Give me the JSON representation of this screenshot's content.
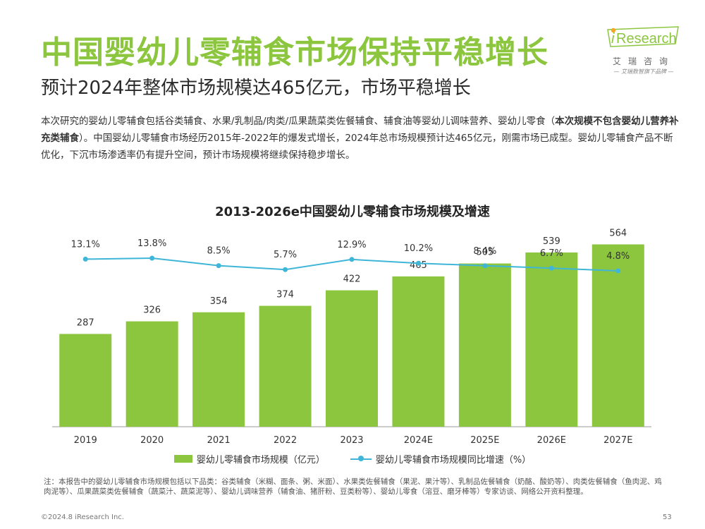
{
  "page": {
    "title": "中国婴幼儿零辅食市场保持平稳增长",
    "subtitle": "预计2024年整体市场规模达465亿元，市场平稳增长",
    "intro_part1": "本次研究的婴幼儿零辅食包括谷类辅食、水果/乳制品/肉类/瓜果蔬菜类佐餐辅食、辅食油等婴幼儿调味营养、婴幼儿零食（",
    "intro_bold": "本次规模不包含婴幼儿营养补充类辅食",
    "intro_part2": "）。中国婴幼儿零辅食市场经历2015年-2022年的爆发式增长，2024年总市场规模预计达465亿元，刚需市场已成型。婴幼儿零辅食产品不断优化，下沉市场渗透率仍有提升空间，预计市场规模将继续保持稳步增长。",
    "note": "注：本报告中的婴幼儿零辅食市场规模包括以下品类：谷类辅食（米糊、面条、粥、米面）、水果类佐餐辅食（果泥、果汁等）、乳制品佐餐辅食（奶酪、酸奶等）、肉类佐餐辅食（鱼肉泥、鸡肉泥等）、瓜果蔬菜类佐餐辅食（蔬菜汁、蔬菜泥等）、婴幼儿调味营养（辅食油、猪肝粉、豆类粉等）、婴幼儿零食（溶豆、磨牙棒等）专家访谈、网络公开资料整理。",
    "footer_copyright": "©2024.8 iResearch Inc.",
    "page_number": "53"
  },
  "logo": {
    "brand_i": "i",
    "brand_rest": "Research",
    "cn_name": "艾瑞咨询",
    "slogan": "— 艾瑞数智旗下品牌 —",
    "color_dot": "#f5a623",
    "color_brand": "#8cc63f"
  },
  "colors": {
    "bar": "#8cc63f",
    "line": "#3fb6d8",
    "axis": "#999999",
    "label": "#333333"
  },
  "chart_data": {
    "type": "bar",
    "title": "2013-2026e中国婴幼儿零辅食市场规模及增速",
    "categories": [
      "2019",
      "2020",
      "2021",
      "2022",
      "2023",
      "2024E",
      "2025E",
      "2026E",
      "2027E"
    ],
    "series": [
      {
        "name": "婴幼儿零辅食市场规模（亿元）",
        "type": "bar",
        "values": [
          287,
          326,
          354,
          374,
          422,
          465,
          505,
          539,
          564
        ],
        "labels": [
          "287",
          "326",
          "354",
          "374",
          "422",
          "465",
          "505",
          "539",
          "564"
        ]
      },
      {
        "name": "婴幼儿零辅食市场规模同比增速（%）",
        "type": "line",
        "values": [
          13.1,
          13.8,
          8.5,
          5.7,
          12.9,
          10.2,
          8.4,
          6.7,
          4.8
        ],
        "labels": [
          "13.1%",
          "13.8%",
          "8.5%",
          "5.7%",
          "12.9%",
          "10.2%",
          "8.4%",
          "6.7%",
          "4.8%"
        ]
      }
    ],
    "ylim": [
      0,
      600
    ],
    "y2lim": [
      0,
      15
    ],
    "grid": false,
    "legend": "bottom"
  }
}
